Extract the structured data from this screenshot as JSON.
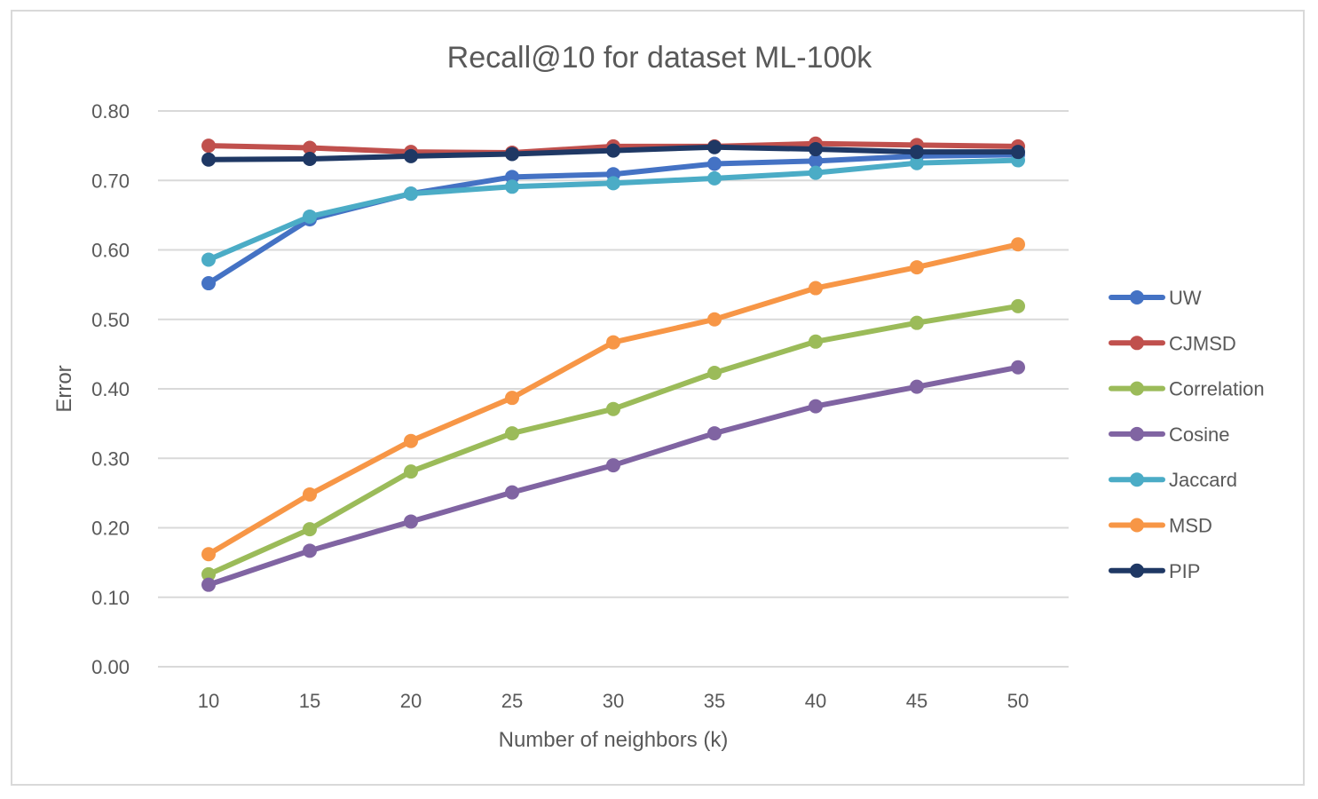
{
  "chart_data": {
    "type": "line",
    "title": "Recall@10 for dataset ML-100k",
    "xlabel": "Number of neighbors (k)",
    "ylabel": "Error",
    "x": [
      10,
      15,
      20,
      25,
      30,
      35,
      40,
      45,
      50
    ],
    "ylim": [
      0,
      0.8
    ],
    "yticks": [
      "0.00",
      "0.10",
      "0.20",
      "0.30",
      "0.40",
      "0.50",
      "0.60",
      "0.70",
      "0.80"
    ],
    "grid": true,
    "legend_position": "right",
    "series": [
      {
        "name": "UW",
        "color": "#4472C4",
        "values": [
          0.552,
          0.644,
          0.681,
          0.705,
          0.709,
          0.724,
          0.728,
          0.735,
          0.737
        ]
      },
      {
        "name": "CJMSD",
        "color": "#C0504D",
        "values": [
          0.75,
          0.747,
          0.741,
          0.74,
          0.749,
          0.749,
          0.753,
          0.751,
          0.749
        ]
      },
      {
        "name": "Correlation",
        "color": "#9BBB59",
        "values": [
          0.133,
          0.198,
          0.281,
          0.336,
          0.371,
          0.423,
          0.468,
          0.495,
          0.519
        ]
      },
      {
        "name": "Cosine",
        "color": "#8064A2",
        "values": [
          0.118,
          0.167,
          0.209,
          0.251,
          0.29,
          0.336,
          0.375,
          0.403,
          0.431
        ]
      },
      {
        "name": "Jaccard",
        "color": "#4BACC6",
        "values": [
          0.586,
          0.648,
          0.681,
          0.691,
          0.696,
          0.703,
          0.711,
          0.725,
          0.729
        ]
      },
      {
        "name": "MSD",
        "color": "#F79646",
        "values": [
          0.162,
          0.248,
          0.325,
          0.387,
          0.467,
          0.5,
          0.545,
          0.575,
          0.608
        ]
      },
      {
        "name": "PIP",
        "color": "#1F3864",
        "values": [
          0.73,
          0.731,
          0.735,
          0.738,
          0.743,
          0.748,
          0.745,
          0.741,
          0.741
        ]
      }
    ]
  }
}
